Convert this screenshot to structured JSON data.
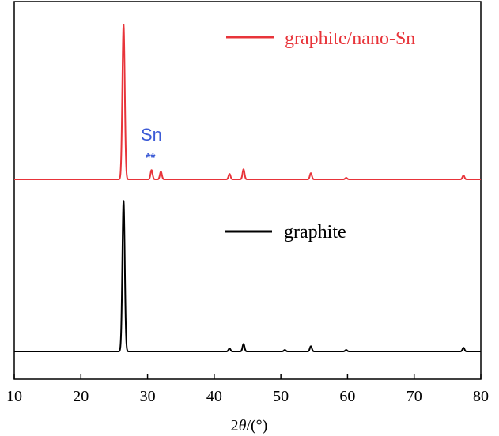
{
  "chart_data": {
    "type": "line",
    "xlabel_prefix": "2",
    "xlabel_theta": "θ",
    "xlabel_suffix": "/(°)",
    "ylabel": "",
    "xlim": [
      10,
      80
    ],
    "y_ticks_shown": false,
    "grid": false,
    "x_ticks": [
      "10",
      "20",
      "30",
      "40",
      "50",
      "60",
      "70",
      "80"
    ],
    "series": [
      {
        "name": "graphite/nano-Sn",
        "color": "#e8343a",
        "stack": "upper",
        "baseline": 0,
        "peaks": [
          {
            "x": 26.4,
            "y": 100
          },
          {
            "x": 30.6,
            "y": 6
          },
          {
            "x": 32.0,
            "y": 5
          },
          {
            "x": 42.3,
            "y": 3.5
          },
          {
            "x": 44.4,
            "y": 6.5
          },
          {
            "x": 54.5,
            "y": 4
          },
          {
            "x": 59.8,
            "y": 1
          },
          {
            "x": 77.4,
            "y": 2.5
          }
        ]
      },
      {
        "name": "graphite",
        "color": "#000000",
        "stack": "lower",
        "baseline": 0,
        "peaks": [
          {
            "x": 26.4,
            "y": 100
          },
          {
            "x": 42.3,
            "y": 2
          },
          {
            "x": 44.4,
            "y": 5
          },
          {
            "x": 50.6,
            "y": 1
          },
          {
            "x": 54.5,
            "y": 3.5
          },
          {
            "x": 59.8,
            "y": 1
          },
          {
            "x": 77.4,
            "y": 2.5
          }
        ]
      }
    ],
    "annotations": [
      {
        "text": "Sn",
        "color": "#3c5bd6"
      },
      {
        "text": "**",
        "color": "#3c5bd6"
      }
    ]
  }
}
